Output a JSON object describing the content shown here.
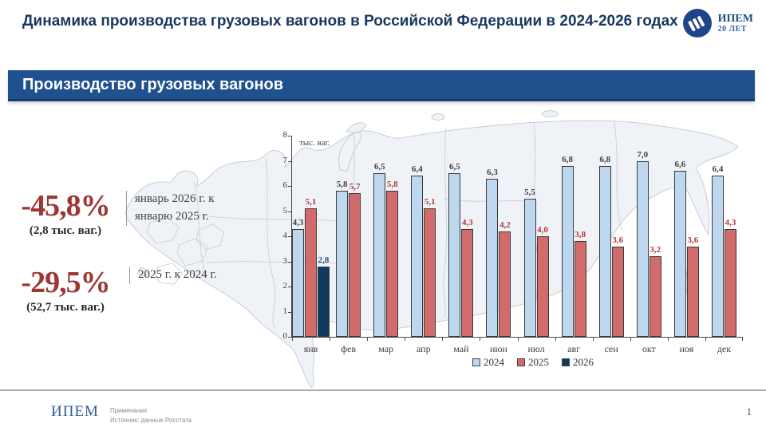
{
  "header": {
    "title": "Динамика производства грузовых вагонов в Российской Федерации в 2024-2026 годах",
    "logo": {
      "org": "ИПЕМ",
      "anniversary": "20 ЛЕТ"
    }
  },
  "banner": {
    "label": "Производство грузовых вагонов"
  },
  "stats": [
    {
      "percent": "-45,8%",
      "absolute": "(2,8 тыс. ваг.)",
      "caption": "январь 2026 г. к январю 2025 г."
    },
    {
      "percent": "-29,5%",
      "absolute": "(52,7 тыс. ваг.)",
      "caption": "2025 г. к 2024 г."
    }
  ],
  "chart_data": {
    "type": "bar",
    "title": "Производство грузовых вагонов",
    "unit_label": "тыс. ваг.",
    "categories": [
      "янв",
      "фев",
      "мар",
      "апр",
      "май",
      "июн",
      "июл",
      "авг",
      "сен",
      "окт",
      "ноя",
      "дек"
    ],
    "series": [
      {
        "name": "2024",
        "color": "#BDD7EE",
        "label_color": "#404040",
        "values": [
          4.3,
          5.8,
          6.5,
          6.4,
          6.5,
          6.3,
          5.5,
          6.8,
          6.8,
          7.0,
          6.6,
          6.4
        ]
      },
      {
        "name": "2025",
        "color": "#D26B6C",
        "label_color": "#B03A36",
        "values": [
          5.1,
          5.7,
          5.8,
          5.1,
          4.3,
          4.2,
          4.0,
          3.8,
          3.6,
          3.2,
          3.6,
          4.3
        ]
      },
      {
        "name": "2026",
        "color": "#12395F",
        "label_color": "#1F4E79",
        "values": [
          2.8,
          null,
          null,
          null,
          null,
          null,
          null,
          null,
          null,
          null,
          null,
          null
        ]
      }
    ],
    "ylim": [
      0,
      8
    ],
    "yticks": [
      0,
      1,
      2,
      3,
      4,
      5,
      6,
      7,
      8
    ],
    "grid": false,
    "legend_position": "bottom-right"
  },
  "footer": {
    "org": "ИПЕМ",
    "note_line1": "Примечания",
    "note_line2": "Источник: данные Росстата",
    "page_number": "1"
  }
}
